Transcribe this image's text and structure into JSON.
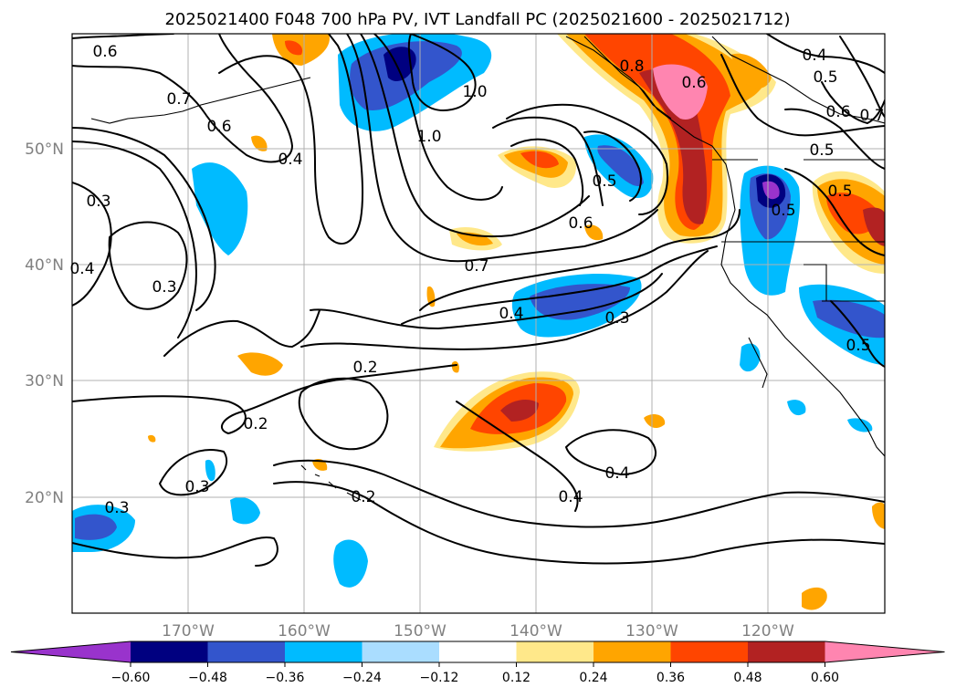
{
  "title": "2025021400 F048 700 hPa PV, IVT Landfall PC (2025021600 - 2025021712)",
  "lat_labels": [
    "50°N",
    "40°N",
    "30°N",
    "20°N"
  ],
  "lon_labels": [
    "170°W",
    "160°W",
    "150°W",
    "140°W",
    "130°W",
    "120°W"
  ],
  "colorbar": {
    "ticks": [
      "−0.60",
      "−0.48",
      "−0.36",
      "−0.24",
      "−0.12",
      "0.12",
      "0.24",
      "0.36",
      "0.48",
      "0.60"
    ],
    "colors": [
      "#9933cc",
      "#000080",
      "#3355cc",
      "#00bbff",
      "#aaddff",
      "#ffffff",
      "#ffe88a",
      "#ffa500",
      "#ff4500",
      "#b22222",
      "#ff85b0"
    ]
  },
  "contour_labels": [
    "0.6",
    "0.7",
    "0.6",
    "0.4",
    "0.3",
    "0.4",
    "0.3",
    "1.0",
    "1.0",
    "0.7",
    "0.4",
    "0.3",
    "0.2",
    "0.2",
    "0.3",
    "0.3",
    "0.2",
    "0.4",
    "0.4",
    "0.6",
    "0.5",
    "0.8",
    "0.6",
    "0.4",
    "0.5",
    "0.6",
    "0.7",
    "0.5",
    "0.5",
    "0.5",
    "0.5"
  ]
}
